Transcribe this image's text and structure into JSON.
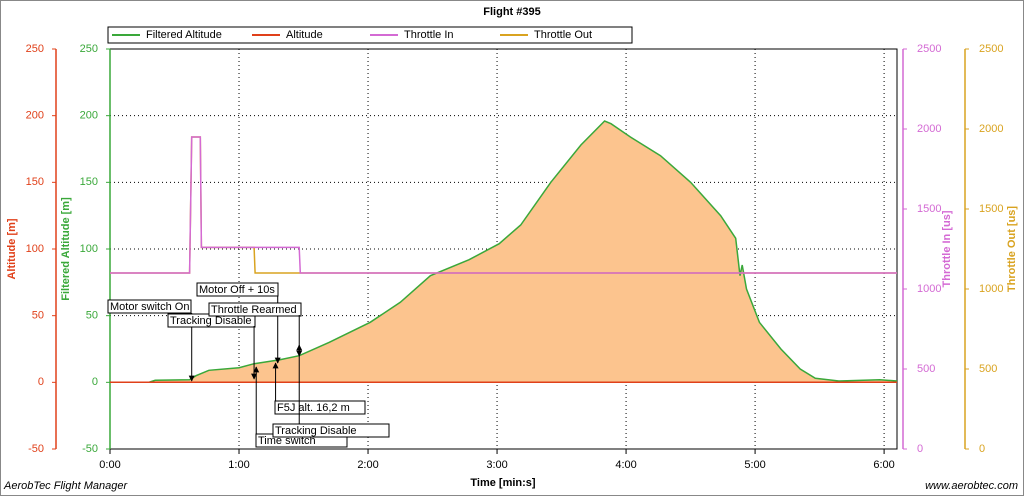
{
  "chart_data": {
    "type": "line",
    "title": "Flight #395",
    "xlabel": "Time [min:s]",
    "ylabel": "Altitude [m]",
    "y2label": "Filtered Altitude [m]",
    "y3label": "Throttle In [us]",
    "y4label": "Throttle Out [us]",
    "xlim": [
      0,
      366
    ],
    "xticks": [
      {
        "value": 0,
        "label": "0:00"
      },
      {
        "value": 60,
        "label": "1:00"
      },
      {
        "value": 120,
        "label": "2:00"
      },
      {
        "value": 180,
        "label": "3:00"
      },
      {
        "value": 240,
        "label": "4:00"
      },
      {
        "value": 300,
        "label": "5:00"
      },
      {
        "value": 360,
        "label": "6:00"
      }
    ],
    "ylim": [
      -50,
      250
    ],
    "yticks": [
      -50,
      0,
      50,
      100,
      150,
      200,
      250
    ],
    "y2lim": [
      -50,
      250
    ],
    "y2ticks": [
      -50,
      0,
      50,
      100,
      150,
      200,
      250
    ],
    "y3lim": [
      0,
      2500
    ],
    "y3ticks": [
      0,
      500,
      1000,
      1500,
      2000,
      2500
    ],
    "y4lim": [
      0,
      2500
    ],
    "y4ticks": [
      0,
      500,
      1000,
      1500,
      2000,
      2500
    ],
    "grid": true,
    "legend": "top",
    "series": [
      {
        "name": "Filtered Altitude",
        "color": "#3aa83a",
        "fill": "#fcc48e",
        "axis": "y2",
        "x": [
          0,
          18,
          21,
          37,
          40,
          46,
          60,
          67,
          79,
          88,
          102,
          121,
          135,
          149,
          167,
          181,
          191,
          205,
          219,
          230,
          233,
          242,
          256,
          270,
          284,
          291,
          293,
          294,
          296,
          302,
          312,
          321,
          328,
          339,
          358,
          366
        ],
        "values": [
          0,
          0,
          1.5,
          2,
          5,
          9,
          11,
          14,
          17,
          20,
          30,
          45,
          60,
          80,
          92,
          104,
          118,
          150,
          178,
          196,
          194,
          184,
          170,
          150,
          125,
          108,
          80,
          88,
          70,
          45,
          25,
          10,
          3,
          1,
          2,
          1
        ]
      },
      {
        "name": "Altitude",
        "color": "#e0401a",
        "axis": "y",
        "x": [
          0,
          366
        ],
        "values": [
          0,
          0
        ]
      },
      {
        "name": "Throttle In",
        "color": "#d46ad4",
        "axis": "y3",
        "x": [
          0,
          37,
          38,
          42,
          42.5,
          88,
          88.5,
          366
        ],
        "values": [
          1100,
          1100,
          1950,
          1950,
          1260,
          1260,
          1100,
          1100
        ]
      },
      {
        "name": "Throttle Out",
        "color": "#d9a320",
        "axis": "y4",
        "x": [
          0,
          37,
          38,
          42,
          42.5,
          67,
          67.5,
          366
        ],
        "values": [
          1100,
          1100,
          1950,
          1950,
          1260,
          1260,
          1100,
          1100
        ]
      }
    ],
    "annotations": [
      {
        "text": "Motor switch On",
        "x": 38
      },
      {
        "text": "Tracking Disable",
        "x": 67
      },
      {
        "text": "Motor Off + 10s",
        "x": 78
      },
      {
        "text": "Throttle Rearmed",
        "x": 88
      },
      {
        "text": "Time switch",
        "x": 68
      },
      {
        "text": "F5J alt. 16,2 m",
        "x": 77
      },
      {
        "text": "Tracking Disable",
        "x": 88
      }
    ],
    "footer_left": "AerobTec Flight Manager",
    "footer_right": "www.aerobtec.com"
  }
}
